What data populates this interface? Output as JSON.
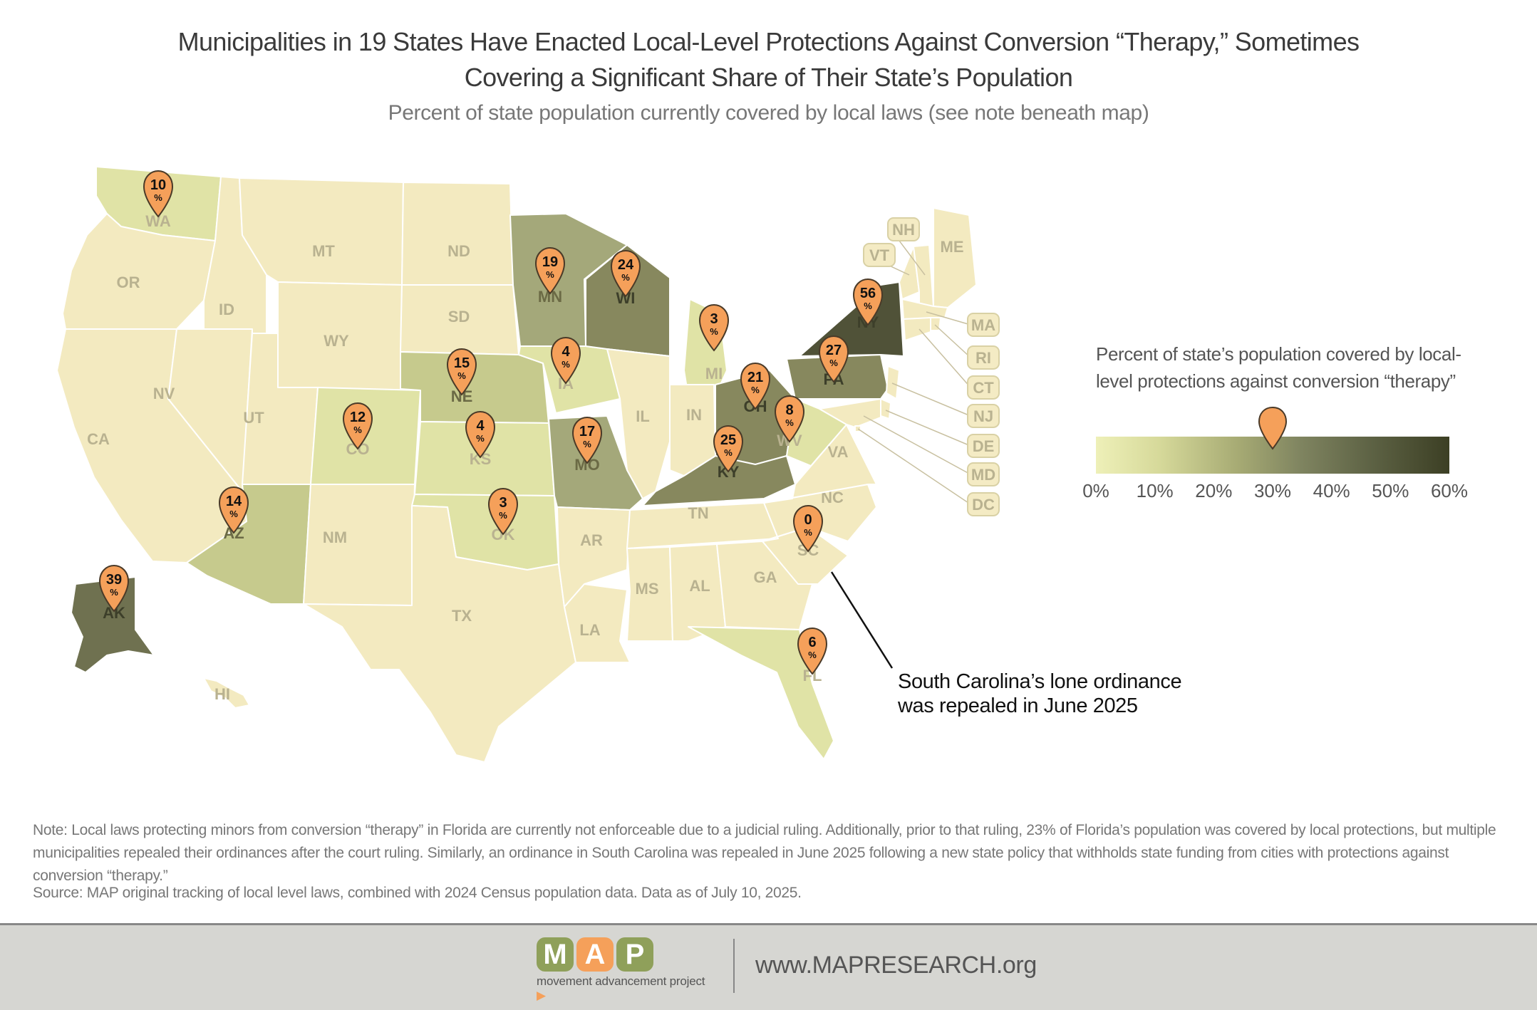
{
  "title_line1": "Municipalities in 19 States Have Enacted Local-Level Protections Against Conversion “Therapy,” Sometimes",
  "title_line2": "Covering a Significant Share of Their State’s Population",
  "subtitle": "Percent of state population currently covered by local laws (see note beneath map)",
  "colors": {
    "empty": "#f3eac0",
    "c1": "#e0e3a6",
    "c2": "#c6ca8d",
    "c3": "#a4a87a",
    "c4": "#87885e",
    "c5": "#6f7150",
    "c6": "#505238",
    "pin": "#f5a05a",
    "pin_stroke": "#4a3a28"
  },
  "states": [
    {
      "abbr": "WA",
      "pct": 10,
      "color": "c1"
    },
    {
      "abbr": "OR",
      "pct": null,
      "color": "empty"
    },
    {
      "abbr": "CA",
      "pct": null,
      "color": "empty"
    },
    {
      "abbr": "NV",
      "pct": null,
      "color": "empty"
    },
    {
      "abbr": "ID",
      "pct": null,
      "color": "empty"
    },
    {
      "abbr": "MT",
      "pct": null,
      "color": "empty"
    },
    {
      "abbr": "WY",
      "pct": null,
      "color": "empty"
    },
    {
      "abbr": "UT",
      "pct": null,
      "color": "empty"
    },
    {
      "abbr": "AZ",
      "pct": 14,
      "color": "c2"
    },
    {
      "abbr": "CO",
      "pct": 12,
      "color": "c1"
    },
    {
      "abbr": "NM",
      "pct": null,
      "color": "empty"
    },
    {
      "abbr": "ND",
      "pct": null,
      "color": "empty"
    },
    {
      "abbr": "SD",
      "pct": null,
      "color": "empty"
    },
    {
      "abbr": "NE",
      "pct": 15,
      "color": "c2"
    },
    {
      "abbr": "KS",
      "pct": 4,
      "color": "c1"
    },
    {
      "abbr": "OK",
      "pct": 3,
      "color": "c1"
    },
    {
      "abbr": "TX",
      "pct": null,
      "color": "empty"
    },
    {
      "abbr": "MN",
      "pct": 19,
      "color": "c3"
    },
    {
      "abbr": "IA",
      "pct": 4,
      "color": "c1"
    },
    {
      "abbr": "MO",
      "pct": 17,
      "color": "c3"
    },
    {
      "abbr": "AR",
      "pct": null,
      "color": "empty"
    },
    {
      "abbr": "LA",
      "pct": null,
      "color": "empty"
    },
    {
      "abbr": "WI",
      "pct": 24,
      "color": "c4"
    },
    {
      "abbr": "IL",
      "pct": null,
      "color": "empty"
    },
    {
      "abbr": "MI",
      "pct": 3,
      "color": "c1"
    },
    {
      "abbr": "IN",
      "pct": null,
      "color": "empty"
    },
    {
      "abbr": "OH",
      "pct": 21,
      "color": "c4"
    },
    {
      "abbr": "KY",
      "pct": 25,
      "color": "c4"
    },
    {
      "abbr": "TN",
      "pct": null,
      "color": "empty"
    },
    {
      "abbr": "MS",
      "pct": null,
      "color": "empty"
    },
    {
      "abbr": "AL",
      "pct": null,
      "color": "empty"
    },
    {
      "abbr": "GA",
      "pct": null,
      "color": "empty"
    },
    {
      "abbr": "FL",
      "pct": 6,
      "color": "c1"
    },
    {
      "abbr": "SC",
      "pct": 0,
      "color": "empty"
    },
    {
      "abbr": "NC",
      "pct": null,
      "color": "empty"
    },
    {
      "abbr": "VA",
      "pct": null,
      "color": "empty"
    },
    {
      "abbr": "WV",
      "pct": 8,
      "color": "c1"
    },
    {
      "abbr": "PA",
      "pct": 27,
      "color": "c4"
    },
    {
      "abbr": "NY",
      "pct": 56,
      "color": "c6"
    },
    {
      "abbr": "ME",
      "pct": null,
      "color": "empty"
    },
    {
      "abbr": "VT",
      "pct": null,
      "color": "empty"
    },
    {
      "abbr": "NH",
      "pct": null,
      "color": "empty"
    },
    {
      "abbr": "MA",
      "pct": null,
      "color": "empty"
    },
    {
      "abbr": "RI",
      "pct": null,
      "color": "empty"
    },
    {
      "abbr": "CT",
      "pct": null,
      "color": "empty"
    },
    {
      "abbr": "NJ",
      "pct": null,
      "color": "empty"
    },
    {
      "abbr": "DE",
      "pct": null,
      "color": "empty"
    },
    {
      "abbr": "MD",
      "pct": null,
      "color": "empty"
    },
    {
      "abbr": "DC",
      "pct": null,
      "color": "empty"
    },
    {
      "abbr": "AK",
      "pct": 39,
      "color": "c5"
    },
    {
      "abbr": "HI",
      "pct": null,
      "color": "empty"
    }
  ],
  "pin_percent_symbol": "%",
  "legend": {
    "title": "Percent of state’s population covered by local-level protections against conversion “therapy”",
    "ticks": [
      "0%",
      "10%",
      "20%",
      "30%",
      "40%",
      "50%",
      "60%"
    ],
    "marker_value": 30
  },
  "annotation": {
    "line1": "South Carolina’s lone ordinance",
    "line2": "was repealed in June 2025"
  },
  "note": "Note: Local laws protecting minors from conversion “therapy” in Florida are currently not enforceable due to a judicial ruling. Additionally, prior to that ruling, 23% of Florida’s population was covered by local protections, but multiple municipalities repealed their ordinances after the court ruling. Similarly, an ordinance in South Carolina was repealed in June 2025 following a new state policy that withholds state funding from cities with protections against conversion “therapy.”",
  "source": "Source: MAP original tracking of local level laws, combined with 2024 Census population data. Data as of July 10, 2025.",
  "footer": {
    "logo_letters": [
      "M",
      "A",
      "P"
    ],
    "logo_colors": [
      "#8fa05a",
      "#f5a05a",
      "#8fa05a"
    ],
    "logo_tagline": "movement advancement project",
    "url": "www.MAPRESEARCH.org"
  }
}
